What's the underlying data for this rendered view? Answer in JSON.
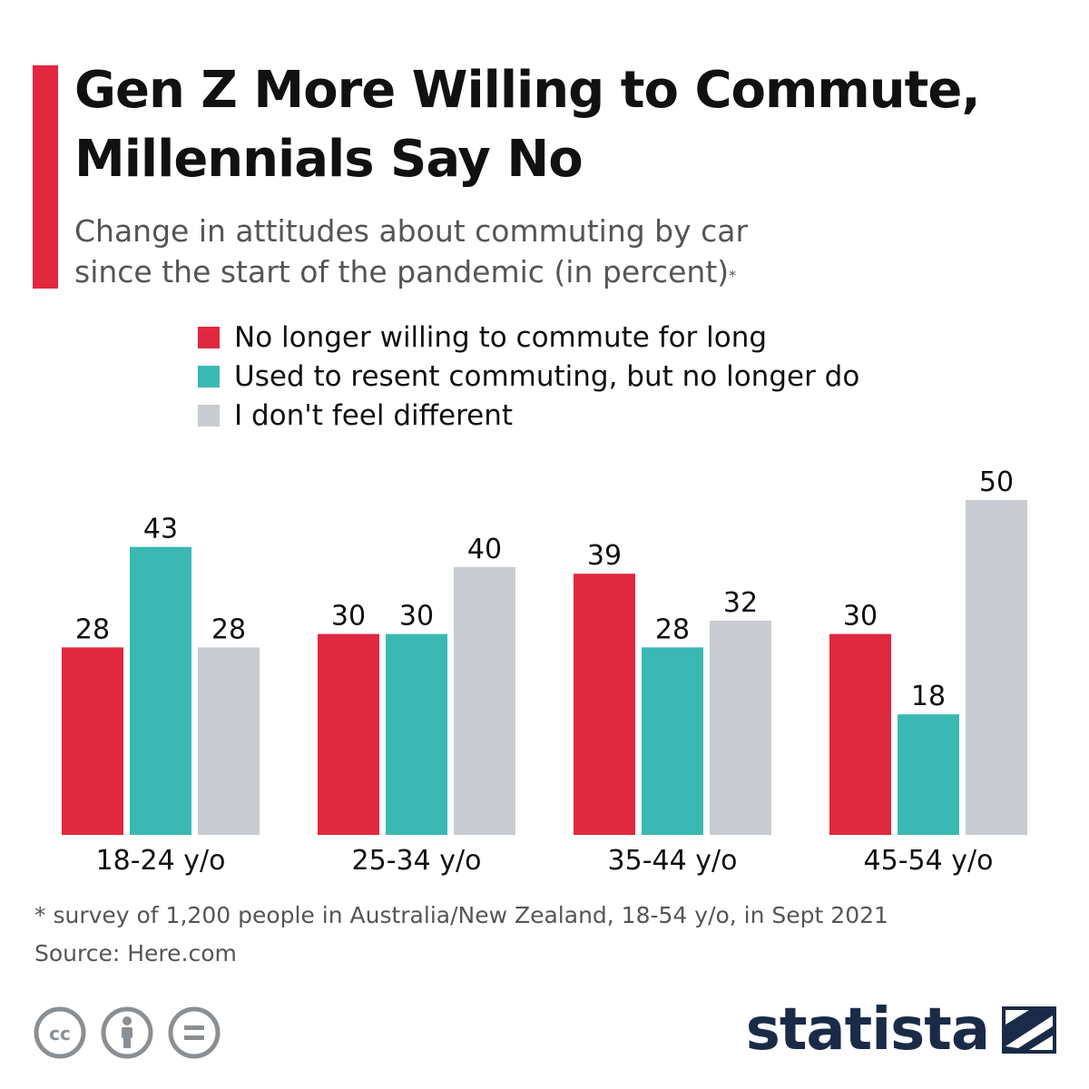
{
  "header": {
    "title_line1": "Gen Z More Willing to Commute,",
    "title_line2": "Millennials Say No",
    "subtitle_line1": "Change in attitudes about commuting by car",
    "subtitle_line2": "since the start of the pandemic (in percent)",
    "subtitle_mark": "*"
  },
  "colors": {
    "accent": "#e0283f",
    "red": "#e0283f",
    "teal": "#3bb8b3",
    "gray": "#c8ccd0",
    "brand": "#1a2b48"
  },
  "legend": [
    {
      "label": "No longer willing to commute for long",
      "color": "#e0283f"
    },
    {
      "label": "Used to resent commuting, but no longer do",
      "color": "#3bb8b3"
    },
    {
      "label": "I don't feel different",
      "color": "#c8ccd0"
    }
  ],
  "chart_data": {
    "type": "bar",
    "title": "Gen Z More Willing to Commute, Millennials Say No",
    "subtitle": "Change in attitudes about commuting by car since the start of the pandemic (in percent)*",
    "categories": [
      "18-24 y/o",
      "25-34 y/o",
      "35-44 y/o",
      "45-54 y/o"
    ],
    "series": [
      {
        "name": "No longer willing to commute for long",
        "color": "#e0283f",
        "values": [
          28,
          30,
          39,
          30
        ]
      },
      {
        "name": "Used to resent commuting, but no longer do",
        "color": "#3bb8b3",
        "values": [
          43,
          30,
          28,
          18
        ]
      },
      {
        "name": "I don't feel different",
        "color": "#c8ccd0",
        "values": [
          28,
          40,
          32,
          50
        ]
      }
    ],
    "xlabel": "",
    "ylabel": "",
    "ylim": [
      0,
      50
    ],
    "grid": false,
    "data_labels": true,
    "legend_position": "top"
  },
  "footer": {
    "note": "* survey of 1,200 people in Australia/New Zealand, 18-54 y/o, in Sept 2021",
    "source": "Source: Here.com",
    "license_icons": [
      "cc-icon",
      "attribution-icon",
      "no-derivatives-icon"
    ],
    "brand": "statista",
    "brand_mark": "statista-logo-icon"
  }
}
